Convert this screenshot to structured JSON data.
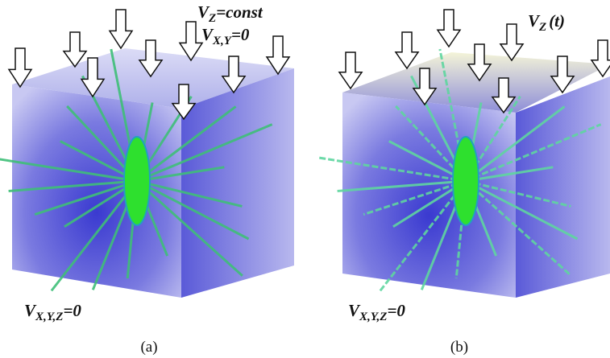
{
  "panels": [
    {
      "labels": [
        {
          "symbol": "V",
          "subscript": "Z",
          "text": "=const"
        },
        {
          "symbol": "V",
          "subscript": "X,Y",
          "text": "=0"
        },
        {
          "symbol": "V",
          "subscript": "X,Y,Z",
          "text": "=0"
        }
      ],
      "caption": "(a)"
    },
    {
      "labels": [
        {
          "symbol": "V",
          "subscript": "Z",
          "text": "(t)"
        },
        {
          "symbol": "V",
          "subscript": "X,Y,Z",
          "text": "=0"
        }
      ],
      "caption": "(b)"
    }
  ]
}
